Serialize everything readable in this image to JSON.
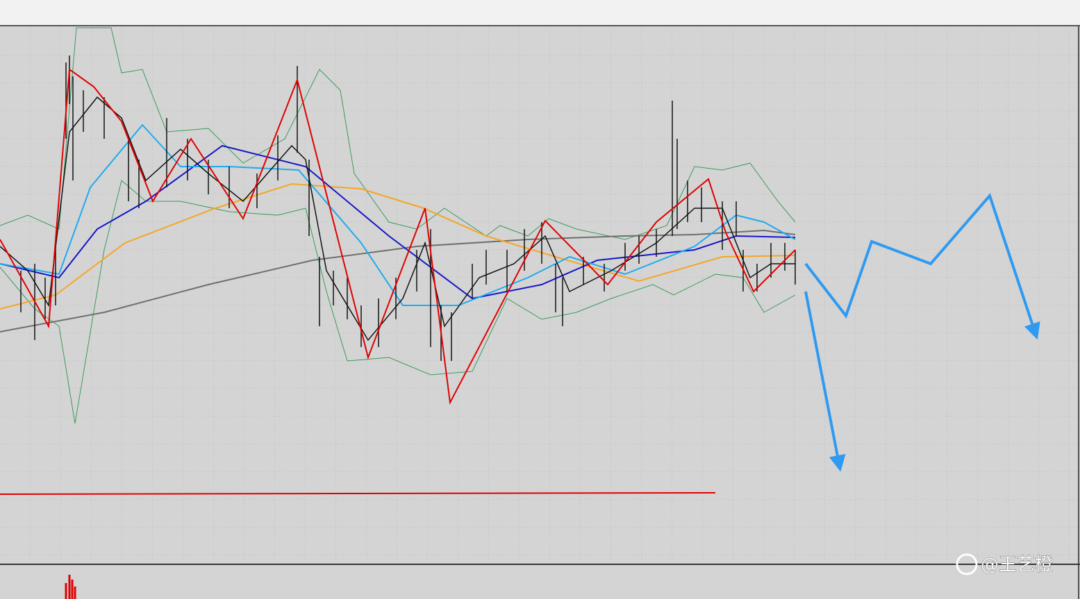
{
  "watermark": {
    "handle": "@王艺橙"
  }
}
